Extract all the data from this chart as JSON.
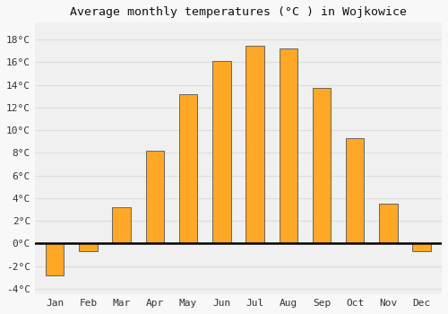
{
  "title": "Average monthly temperatures (°C ) in Wojkowice",
  "months": [
    "Jan",
    "Feb",
    "Mar",
    "Apr",
    "May",
    "Jun",
    "Jul",
    "Aug",
    "Sep",
    "Oct",
    "Nov",
    "Dec"
  ],
  "values": [
    -2.8,
    -0.7,
    3.2,
    8.2,
    13.2,
    16.1,
    17.5,
    17.2,
    13.7,
    9.3,
    3.5,
    -0.7
  ],
  "bar_color": "#FFA726",
  "bar_edge_color": "#555555",
  "ylim": [
    -4.5,
    19.5
  ],
  "yticks": [
    -4,
    -2,
    0,
    2,
    4,
    6,
    8,
    10,
    12,
    14,
    16,
    18
  ],
  "ytick_labels": [
    "-4°C",
    "-2°C",
    "0°C",
    "2°C",
    "4°C",
    "6°C",
    "8°C",
    "10°C",
    "12°C",
    "14°C",
    "16°C",
    "18°C"
  ],
  "background_color": "#f8f8f8",
  "plot_bg_color": "#f0f0f0",
  "grid_color": "#dddddd",
  "title_fontsize": 9.5,
  "tick_fontsize": 8,
  "zero_line_color": "#000000",
  "bar_width": 0.55
}
